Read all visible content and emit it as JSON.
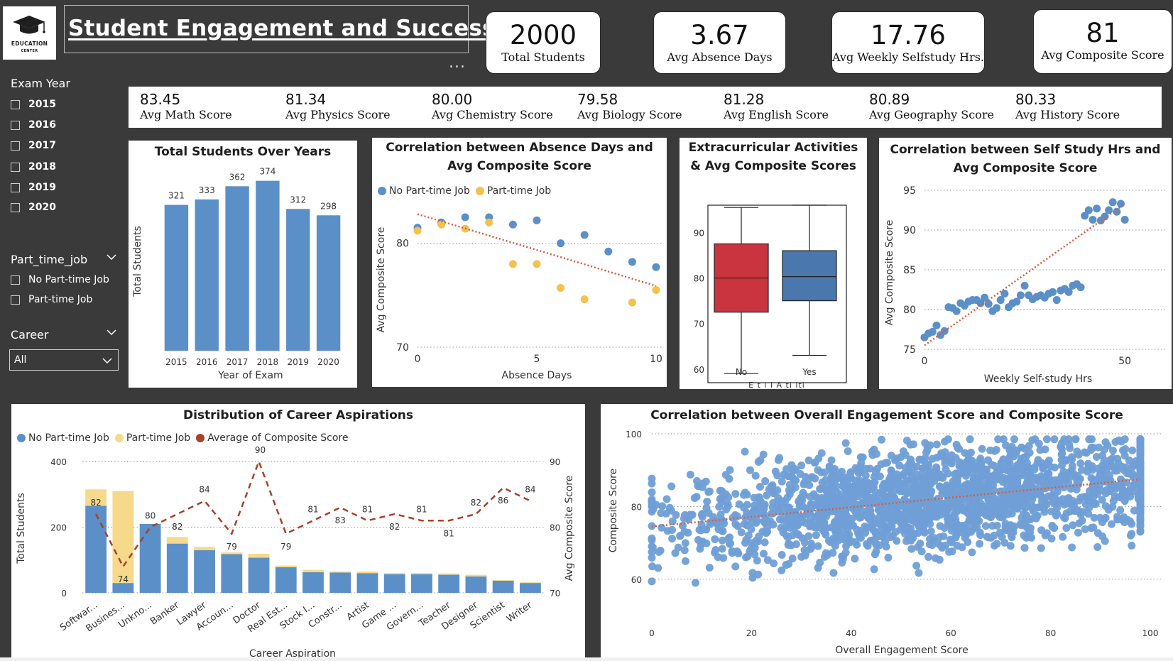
{
  "header": {
    "logo_text_line1": "EDUCATION",
    "logo_text_line2": "CENTER",
    "title": "Student Engagement and Success",
    "more_options": "..."
  },
  "kpis": [
    {
      "value": "2000",
      "label": "Total Students"
    },
    {
      "value": "3.67",
      "label": "Avg Absence Days"
    },
    {
      "value": "17.76",
      "label": "Avg Weekly Selfstudy Hrs."
    },
    {
      "value": "81",
      "label": "Avg Composite Score"
    }
  ],
  "subjects": [
    {
      "value": "83.45",
      "label": "Avg Math Score"
    },
    {
      "value": "81.34",
      "label": "Avg Physics Score"
    },
    {
      "value": "80.00",
      "label": "Avg Chemistry Score"
    },
    {
      "value": "79.58",
      "label": "Avg Biology Score"
    },
    {
      "value": "81.28",
      "label": "Avg English Score"
    },
    {
      "value": "80.89",
      "label": "Avg Geography Score"
    },
    {
      "value": "80.33",
      "label": "Avg History Score"
    }
  ],
  "filters": {
    "exam_year": {
      "title": "Exam Year",
      "options": [
        "2015",
        "2016",
        "2017",
        "2018",
        "2019",
        "2020"
      ]
    },
    "part_time_job": {
      "title": "Part_time_job",
      "options": [
        "No Part-time Job",
        "Part-time Job"
      ]
    },
    "career": {
      "title": "Career",
      "selected": "All"
    }
  },
  "colors": {
    "background": "#3a3a3a",
    "bar_blue": "#5b8fc8",
    "yellow": "#f2c14e",
    "light_yellow": "#f7d98b",
    "red_line": "#a8402a",
    "trend": "#dd5a3c",
    "box_red": "#c9343f",
    "box_blue": "#4a78ae"
  },
  "chart_data": [
    {
      "id": "students_over_years",
      "type": "bar",
      "title": "Total Students Over Years",
      "xlabel": "Year of Exam",
      "ylabel": "Total Students",
      "categories": [
        "2015",
        "2016",
        "2017",
        "2018",
        "2019",
        "2020"
      ],
      "values": [
        321,
        333,
        362,
        374,
        312,
        298
      ]
    },
    {
      "id": "absence_vs_score",
      "type": "scatter",
      "title": "Correlation between Absence Days and Avg Composite Score",
      "xlabel": "Absence Days",
      "ylabel": "Avg Composite Score",
      "xlim": [
        0,
        10
      ],
      "ylim": [
        70,
        84
      ],
      "xticks": [
        "0",
        "5",
        "10"
      ],
      "yticks": [
        "70",
        "80"
      ],
      "series": [
        {
          "name": "No Part-time Job",
          "x": [
            0,
            1,
            2,
            3,
            4,
            5,
            6,
            7,
            8,
            9,
            10
          ],
          "y": [
            81.5,
            82,
            82.5,
            82.5,
            81.8,
            82.2,
            80,
            80.8,
            79.2,
            78.2,
            77.7
          ]
        },
        {
          "name": "Part-time Job",
          "x": [
            0,
            1,
            2,
            3,
            4,
            5,
            6,
            7,
            9,
            10
          ],
          "y": [
            81.2,
            81.8,
            81.4,
            82,
            78,
            78,
            75.7,
            74.6,
            74.3,
            75.5
          ]
        }
      ],
      "trendline": {
        "x": [
          0,
          10
        ],
        "y": [
          82.8,
          75.9
        ]
      }
    },
    {
      "id": "extracurricular_box",
      "type": "box",
      "title": "Extracurricular Activities & Avg Composite Scores",
      "categories": [
        "No",
        "Yes"
      ],
      "xlabel_partial": "E t  i l  A ti iti",
      "ylim": [
        57,
        96
      ],
      "yticks": [
        "60",
        "70",
        "80",
        "90"
      ],
      "boxes": [
        {
          "name": "No",
          "min": 59,
          "q1": 72.5,
          "median": 80,
          "q3": 87.5,
          "max": 95.5
        },
        {
          "name": "Yes",
          "min": 63,
          "q1": 75,
          "median": 80.3,
          "q3": 86,
          "max": 96
        }
      ]
    },
    {
      "id": "selfstudy_vs_score",
      "type": "scatter",
      "title": "Correlation between Self Study Hrs and Avg Composite Score",
      "xlabel": "Weekly Self-study Hrs",
      "ylabel": "Avg Composite Score",
      "xlim": [
        0,
        56
      ],
      "ylim": [
        75,
        95
      ],
      "xticks": [
        "0",
        "50"
      ],
      "yticks": [
        "75",
        "80",
        "85",
        "90",
        "95"
      ],
      "x": [
        0,
        1,
        2,
        3,
        4,
        5,
        6,
        7,
        8,
        9,
        10,
        11,
        12,
        13,
        14,
        15,
        16,
        17,
        18,
        19,
        20,
        21,
        22,
        23,
        24,
        25,
        26,
        27,
        28,
        29,
        30,
        31,
        32,
        33,
        34,
        35,
        36,
        37,
        38,
        39,
        40,
        41,
        42,
        43,
        44,
        45,
        46,
        47,
        48,
        49,
        50
      ],
      "y": [
        76.5,
        77,
        77.2,
        78,
        76.8,
        77.3,
        80.3,
        80.2,
        79.8,
        80.8,
        80.5,
        81,
        81.2,
        81.2,
        80.8,
        81.5,
        80.7,
        79.8,
        80.2,
        81.2,
        82,
        80.3,
        80.8,
        81,
        81.8,
        83,
        81.8,
        81.3,
        81.6,
        81.8,
        81.5,
        82,
        82.2,
        81.2,
        82.4,
        82.6,
        82.2,
        83,
        83.2,
        82.8,
        91.8,
        92.5,
        91.3,
        92.7,
        91.2,
        91.7,
        92.5,
        93.5,
        92.3,
        93.3,
        91.3
      ],
      "trendline": {
        "x": [
          0,
          50
        ],
        "y": [
          75.5,
          93.3
        ]
      }
    },
    {
      "id": "career_aspirations",
      "type": "bar",
      "title": "Distribution of Career Aspirations",
      "xlabel": "Career Aspiration",
      "ylabel": "Total Students",
      "y2label": "Avg Composite Score",
      "ylim": [
        0,
        400
      ],
      "y2lim": [
        70,
        90
      ],
      "yticks": [
        "0",
        "200",
        "400"
      ],
      "y2ticks": [
        "70",
        "80",
        "90"
      ],
      "categories": [
        "Softwar...",
        "Busines...",
        "Unkno...",
        "Banker",
        "Lawyer",
        "Accoun...",
        "Doctor",
        "Real Est...",
        "Stock I...",
        "Constr...",
        "Artist",
        "Game ...",
        "Govern...",
        "Teacher",
        "Designer",
        "Scientist",
        "Writer"
      ],
      "series": [
        {
          "name": "No Part-time Job",
          "values": [
            265,
            30,
            210,
            150,
            130,
            118,
            107,
            78,
            63,
            62,
            60,
            57,
            57,
            55,
            50,
            37,
            30
          ]
        },
        {
          "name": "Part-time Job",
          "values": [
            50,
            280,
            0,
            20,
            10,
            5,
            12,
            5,
            7,
            3,
            5,
            3,
            3,
            4,
            5,
            2,
            2
          ]
        },
        {
          "name": "Average of Composite Score",
          "values": [
            82,
            74,
            80,
            82,
            84,
            79,
            90,
            79,
            81,
            83,
            81,
            82,
            81,
            81,
            82,
            86,
            84
          ]
        }
      ],
      "data_labels": [
        "82",
        "74",
        "80",
        "82",
        "84",
        "79",
        "90",
        "79",
        "81",
        "83",
        "81",
        "82",
        "81",
        "81",
        "82",
        "86",
        "84"
      ]
    },
    {
      "id": "engagement_vs_composite",
      "type": "scatter",
      "title": "Correlation between Overall Engagement Score and Composite Score",
      "xlabel": "Overall Engagement Score",
      "ylabel": "Composite Score",
      "xlim": [
        0,
        100
      ],
      "ylim": [
        58,
        100
      ],
      "xticks": [
        "0",
        "20",
        "40",
        "60",
        "80",
        "100"
      ],
      "yticks": [
        "60",
        "80",
        "100"
      ],
      "n_points": 2000,
      "trendline": {
        "x": [
          0,
          98
        ],
        "y": [
          74.5,
          87.5
        ]
      }
    }
  ],
  "legends": {
    "part_time": [
      "No Part-time Job",
      "Part-time Job"
    ],
    "career": [
      "No Part-time Job",
      "Part-time Job",
      "Average of Composite Score"
    ]
  }
}
